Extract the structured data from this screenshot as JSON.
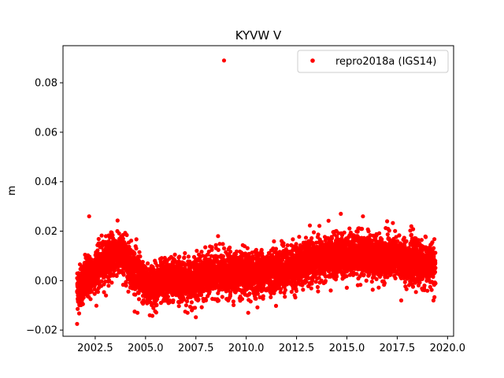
{
  "chart_data": {
    "type": "scatter",
    "title": "KYVW V",
    "xlabel": "",
    "ylabel": "m",
    "xlim": [
      2000.9,
      2020.3
    ],
    "ylim": [
      -0.0225,
      0.095
    ],
    "xticks": [
      2002.5,
      2005.0,
      2007.5,
      2010.0,
      2012.5,
      2015.0,
      2017.5,
      2020.0
    ],
    "xtick_labels": [
      "2002.5",
      "2005.0",
      "2007.5",
      "2010.0",
      "2012.5",
      "2015.0",
      "2017.5",
      "2020.0"
    ],
    "yticks": [
      -0.02,
      0.0,
      0.02,
      0.04,
      0.06,
      0.08
    ],
    "ytick_labels": [
      "−0.02",
      "0.00",
      "0.02",
      "0.04",
      "0.06",
      "0.08"
    ],
    "grid": false,
    "legend": {
      "position": "top-right",
      "entries": [
        "repro2018a (IGS14)"
      ]
    },
    "series": [
      {
        "name": "repro2018a (IGS14)",
        "color": "#ff0000",
        "marker": "circle",
        "trend": [
          [
            2001.6,
            -0.003
          ],
          [
            2002.0,
            0.0
          ],
          [
            2002.5,
            0.004
          ],
          [
            2003.0,
            0.008
          ],
          [
            2003.5,
            0.011
          ],
          [
            2004.0,
            0.009
          ],
          [
            2004.5,
            0.004
          ],
          [
            2005.0,
            -0.002
          ],
          [
            2005.5,
            -0.002
          ],
          [
            2006.0,
            0.0
          ],
          [
            2006.5,
            0.001
          ],
          [
            2007.0,
            0.0
          ],
          [
            2007.5,
            0.001
          ],
          [
            2008.0,
            0.002
          ],
          [
            2008.5,
            0.003
          ],
          [
            2009.0,
            0.002
          ],
          [
            2009.5,
            0.003
          ],
          [
            2010.0,
            0.002
          ],
          [
            2010.5,
            0.003
          ],
          [
            2011.0,
            0.004
          ],
          [
            2011.5,
            0.004
          ],
          [
            2012.0,
            0.005
          ],
          [
            2012.5,
            0.006
          ],
          [
            2013.0,
            0.007
          ],
          [
            2013.5,
            0.008
          ],
          [
            2014.0,
            0.009
          ],
          [
            2014.5,
            0.01
          ],
          [
            2015.0,
            0.01
          ],
          [
            2015.5,
            0.011
          ],
          [
            2016.0,
            0.01
          ],
          [
            2016.5,
            0.009
          ],
          [
            2017.0,
            0.01
          ],
          [
            2017.5,
            0.009
          ],
          [
            2018.0,
            0.008
          ],
          [
            2018.5,
            0.007
          ],
          [
            2019.0,
            0.006
          ],
          [
            2019.4,
            0.006
          ]
        ],
        "scatter_sd": 0.0042,
        "outliers": [
          [
            2008.9,
            0.089
          ],
          [
            2002.2,
            0.026
          ],
          [
            2014.7,
            0.027
          ],
          [
            2015.8,
            0.026
          ],
          [
            2001.6,
            -0.0175
          ],
          [
            2010.1,
            -0.013
          ],
          [
            2004.6,
            -0.013
          ],
          [
            2017.0,
            0.024
          ],
          [
            2003.6,
            0.02
          ],
          [
            2008.6,
            0.018
          ],
          [
            2018.2,
            0.022
          ],
          [
            2014.2,
            -0.004
          ],
          [
            2017.7,
            -0.008
          ],
          [
            2019.3,
            -0.008
          ],
          [
            2007.3,
            -0.012
          ]
        ]
      }
    ]
  }
}
